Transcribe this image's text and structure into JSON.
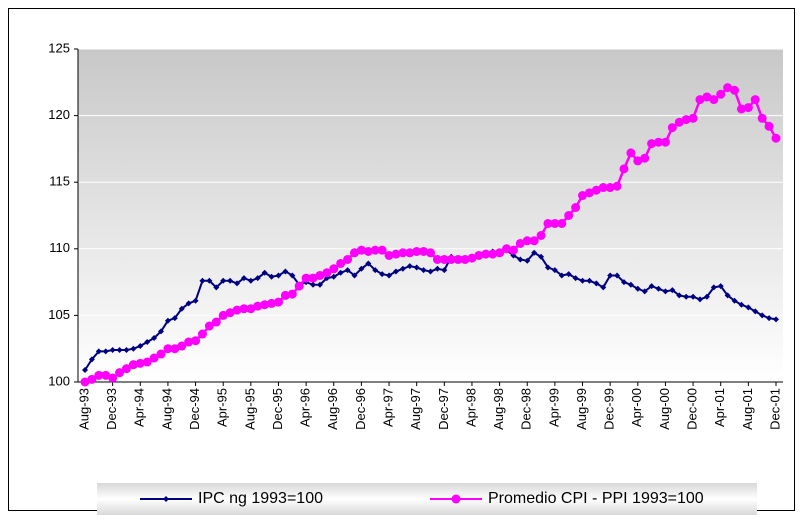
{
  "chart_data": {
    "type": "line",
    "categories": [
      "Aug-93",
      null,
      null,
      null,
      "Dec-93",
      null,
      null,
      null,
      "Apr-94",
      null,
      null,
      null,
      "Aug-94",
      null,
      null,
      null,
      "Dec-94",
      null,
      null,
      null,
      "Apr-95",
      null,
      null,
      null,
      "Aug-95",
      null,
      null,
      null,
      "Dec-95",
      null,
      null,
      null,
      "Apr-96",
      null,
      null,
      null,
      "Aug-96",
      null,
      null,
      null,
      "Dec-96",
      null,
      null,
      null,
      "Apr-97",
      null,
      null,
      null,
      "Aug-97",
      null,
      null,
      null,
      "Dec-97",
      null,
      null,
      null,
      "Apr-98",
      null,
      null,
      null,
      "Aug-98",
      null,
      null,
      null,
      "Dec-98",
      null,
      null,
      null,
      "Apr-99",
      null,
      null,
      null,
      "Aug-99",
      null,
      null,
      null,
      "Dec-99",
      null,
      null,
      null,
      "Apr-00",
      null,
      null,
      null,
      "Aug-00",
      null,
      null,
      null,
      "Dec-00",
      null,
      null,
      null,
      "Apr-01",
      null,
      null,
      null,
      "Aug-01",
      null,
      null,
      null,
      "Dec-01"
    ],
    "series": [
      {
        "name": "IPC ng 1993=100",
        "color": "#000080",
        "marker": "diamond",
        "values": [
          100.9,
          101.7,
          102.3,
          102.3,
          102.4,
          102.4,
          102.4,
          102.5,
          102.7,
          103.0,
          103.3,
          103.8,
          104.6,
          104.8,
          105.5,
          105.9,
          106.1,
          107.6,
          107.6,
          107.1,
          107.6,
          107.6,
          107.4,
          107.8,
          107.6,
          107.8,
          108.2,
          107.9,
          108.0,
          108.3,
          108.0,
          107.3,
          107.5,
          107.3,
          107.3,
          107.8,
          107.9,
          108.2,
          108.4,
          108.0,
          108.5,
          108.9,
          108.4,
          108.1,
          108.0,
          108.3,
          108.5,
          108.7,
          108.6,
          108.4,
          108.3,
          108.5,
          108.4,
          109.4,
          109.3,
          109.1,
          109.2,
          109.4,
          109.6,
          109.8,
          109.7,
          109.9,
          109.5,
          109.2,
          109.1,
          109.7,
          109.4,
          108.6,
          108.4,
          108.0,
          108.1,
          107.8,
          107.6,
          107.6,
          107.4,
          107.1,
          108.0,
          108.0,
          107.5,
          107.3,
          107.0,
          106.8,
          107.2,
          107.0,
          106.8,
          106.9,
          106.5,
          106.4,
          106.4,
          106.2,
          106.4,
          107.1,
          107.2,
          106.5,
          106.1,
          105.8,
          105.6,
          105.3,
          105.0,
          104.8,
          104.7
        ]
      },
      {
        "name": "Promedio CPI - PPI  1993=100",
        "color": "#ff00ff",
        "marker": "circle",
        "values": [
          100.0,
          100.2,
          100.5,
          100.5,
          100.3,
          100.7,
          101.0,
          101.3,
          101.4,
          101.5,
          101.8,
          102.1,
          102.5,
          102.5,
          102.7,
          103.0,
          103.1,
          103.6,
          104.2,
          104.5,
          105.0,
          105.2,
          105.4,
          105.5,
          105.5,
          105.7,
          105.8,
          105.9,
          106.0,
          106.5,
          106.6,
          107.2,
          107.8,
          107.8,
          108.0,
          108.2,
          108.5,
          108.9,
          109.2,
          109.7,
          109.9,
          109.8,
          109.9,
          109.9,
          109.5,
          109.6,
          109.7,
          109.7,
          109.8,
          109.8,
          109.7,
          109.2,
          109.2,
          109.2,
          109.2,
          109.2,
          109.3,
          109.5,
          109.6,
          109.6,
          109.7,
          110.0,
          109.9,
          110.4,
          110.6,
          110.6,
          111.0,
          111.9,
          111.9,
          111.9,
          112.5,
          113.1,
          114.0,
          114.2,
          114.4,
          114.6,
          114.6,
          114.7,
          116.0,
          117.2,
          116.6,
          116.8,
          117.9,
          118.0,
          118.0,
          119.1,
          119.5,
          119.7,
          119.8,
          121.2,
          121.4,
          121.2,
          121.6,
          122.1,
          121.9,
          120.5,
          120.6,
          121.2,
          119.8,
          119.2,
          118.3
        ]
      }
    ],
    "ylim": [
      100,
      125
    ],
    "yticks": [
      100,
      105,
      110,
      115,
      120,
      125
    ],
    "grid": true,
    "legend": "bottom"
  }
}
